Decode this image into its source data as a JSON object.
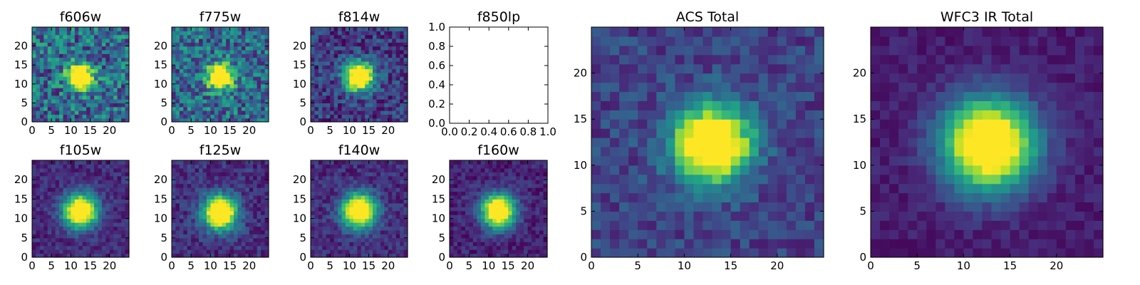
{
  "figure": {
    "description": "Grid of filter cutout images (PSF-like stamps), viridis colormap",
    "colormap": "viridis"
  },
  "chart_data": [
    {
      "type": "heatmap",
      "title": "f606w",
      "xlim": [
        0,
        25
      ],
      "ylim": [
        0,
        25
      ],
      "xticks": [
        "0",
        "5",
        "10",
        "15",
        "20"
      ],
      "yticks": [
        "0",
        "5",
        "10",
        "15",
        "20"
      ],
      "grid_size": 25,
      "source_center": [
        12,
        11.5
      ],
      "source_width": 2.2,
      "background_level": 0.35,
      "noise": 0.28,
      "empty": false,
      "seed": 11
    },
    {
      "type": "heatmap",
      "title": "f775w",
      "xlim": [
        0,
        25
      ],
      "ylim": [
        0,
        25
      ],
      "xticks": [
        "0",
        "5",
        "10",
        "15",
        "20"
      ],
      "yticks": [
        "0",
        "5",
        "10",
        "15",
        "20"
      ],
      "grid_size": 25,
      "source_center": [
        12,
        11.5
      ],
      "source_width": 2.2,
      "background_level": 0.35,
      "noise": 0.26,
      "empty": false,
      "seed": 23
    },
    {
      "type": "heatmap",
      "title": "f814w",
      "xlim": [
        0,
        25
      ],
      "ylim": [
        0,
        25
      ],
      "xticks": [
        "0",
        "5",
        "10",
        "15",
        "20"
      ],
      "yticks": [
        "0",
        "5",
        "10",
        "15",
        "20"
      ],
      "grid_size": 25,
      "source_center": [
        12,
        11.5
      ],
      "source_width": 2.6,
      "background_level": 0.18,
      "noise": 0.18,
      "empty": false,
      "seed": 37
    },
    {
      "type": "heatmap",
      "title": "f850lp",
      "xlim": [
        0,
        1
      ],
      "ylim": [
        0,
        1
      ],
      "xticks": [
        "0.0",
        "0.2",
        "0.4",
        "0.6",
        "0.8",
        "1.0"
      ],
      "yticks": [
        "0.0",
        "0.2",
        "0.4",
        "0.6",
        "0.8",
        "1.0"
      ],
      "empty": true
    },
    {
      "type": "heatmap",
      "title": "f105w",
      "xlim": [
        0,
        25
      ],
      "ylim": [
        0,
        25
      ],
      "xticks": [
        "0",
        "5",
        "10",
        "15",
        "20"
      ],
      "yticks": [
        "0",
        "5",
        "10",
        "15",
        "20"
      ],
      "grid_size": 25,
      "source_center": [
        12,
        11.5
      ],
      "source_width": 3.0,
      "background_level": 0.12,
      "noise": 0.1,
      "empty": false,
      "seed": 41
    },
    {
      "type": "heatmap",
      "title": "f125w",
      "xlim": [
        0,
        25
      ],
      "ylim": [
        0,
        25
      ],
      "xticks": [
        "0",
        "5",
        "10",
        "15",
        "20"
      ],
      "yticks": [
        "0",
        "5",
        "10",
        "15",
        "20"
      ],
      "grid_size": 25,
      "source_center": [
        12,
        11
      ],
      "source_width": 3.0,
      "background_level": 0.14,
      "noise": 0.12,
      "empty": false,
      "seed": 53
    },
    {
      "type": "heatmap",
      "title": "f140w",
      "xlim": [
        0,
        25
      ],
      "ylim": [
        0,
        25
      ],
      "xticks": [
        "0",
        "5",
        "10",
        "15",
        "20"
      ],
      "yticks": [
        "0",
        "5",
        "10",
        "15",
        "20"
      ],
      "grid_size": 25,
      "source_center": [
        12,
        11.5
      ],
      "source_width": 3.0,
      "background_level": 0.13,
      "noise": 0.11,
      "empty": false,
      "seed": 61
    },
    {
      "type": "heatmap",
      "title": "f160w",
      "xlim": [
        0,
        25
      ],
      "ylim": [
        0,
        25
      ],
      "xticks": [
        "0",
        "5",
        "10",
        "15",
        "20"
      ],
      "yticks": [
        "0",
        "5",
        "10",
        "15",
        "20"
      ],
      "grid_size": 25,
      "source_center": [
        12,
        11.5
      ],
      "source_width": 3.0,
      "background_level": 0.1,
      "noise": 0.1,
      "empty": false,
      "seed": 71
    },
    {
      "type": "heatmap",
      "title": "ACS Total",
      "xlim": [
        0,
        25
      ],
      "ylim": [
        0,
        25
      ],
      "xticks": [
        "0",
        "5",
        "10",
        "15",
        "20"
      ],
      "yticks": [
        "0",
        "5",
        "10",
        "15",
        "20"
      ],
      "grid_size": 25,
      "source_center": [
        12.5,
        11.8
      ],
      "source_width": 2.8,
      "background_level": 0.2,
      "noise": 0.12,
      "empty": false,
      "seed": 83
    },
    {
      "type": "heatmap",
      "title": "WFC3 IR Total",
      "xlim": [
        0,
        25
      ],
      "ylim": [
        0,
        25
      ],
      "xticks": [
        "0",
        "5",
        "10",
        "15",
        "20"
      ],
      "yticks": [
        "0",
        "5",
        "10",
        "15",
        "20"
      ],
      "grid_size": 25,
      "source_center": [
        12.2,
        11.8
      ],
      "source_width": 3.4,
      "background_level": 0.08,
      "noise": 0.06,
      "empty": false,
      "seed": 97
    }
  ]
}
